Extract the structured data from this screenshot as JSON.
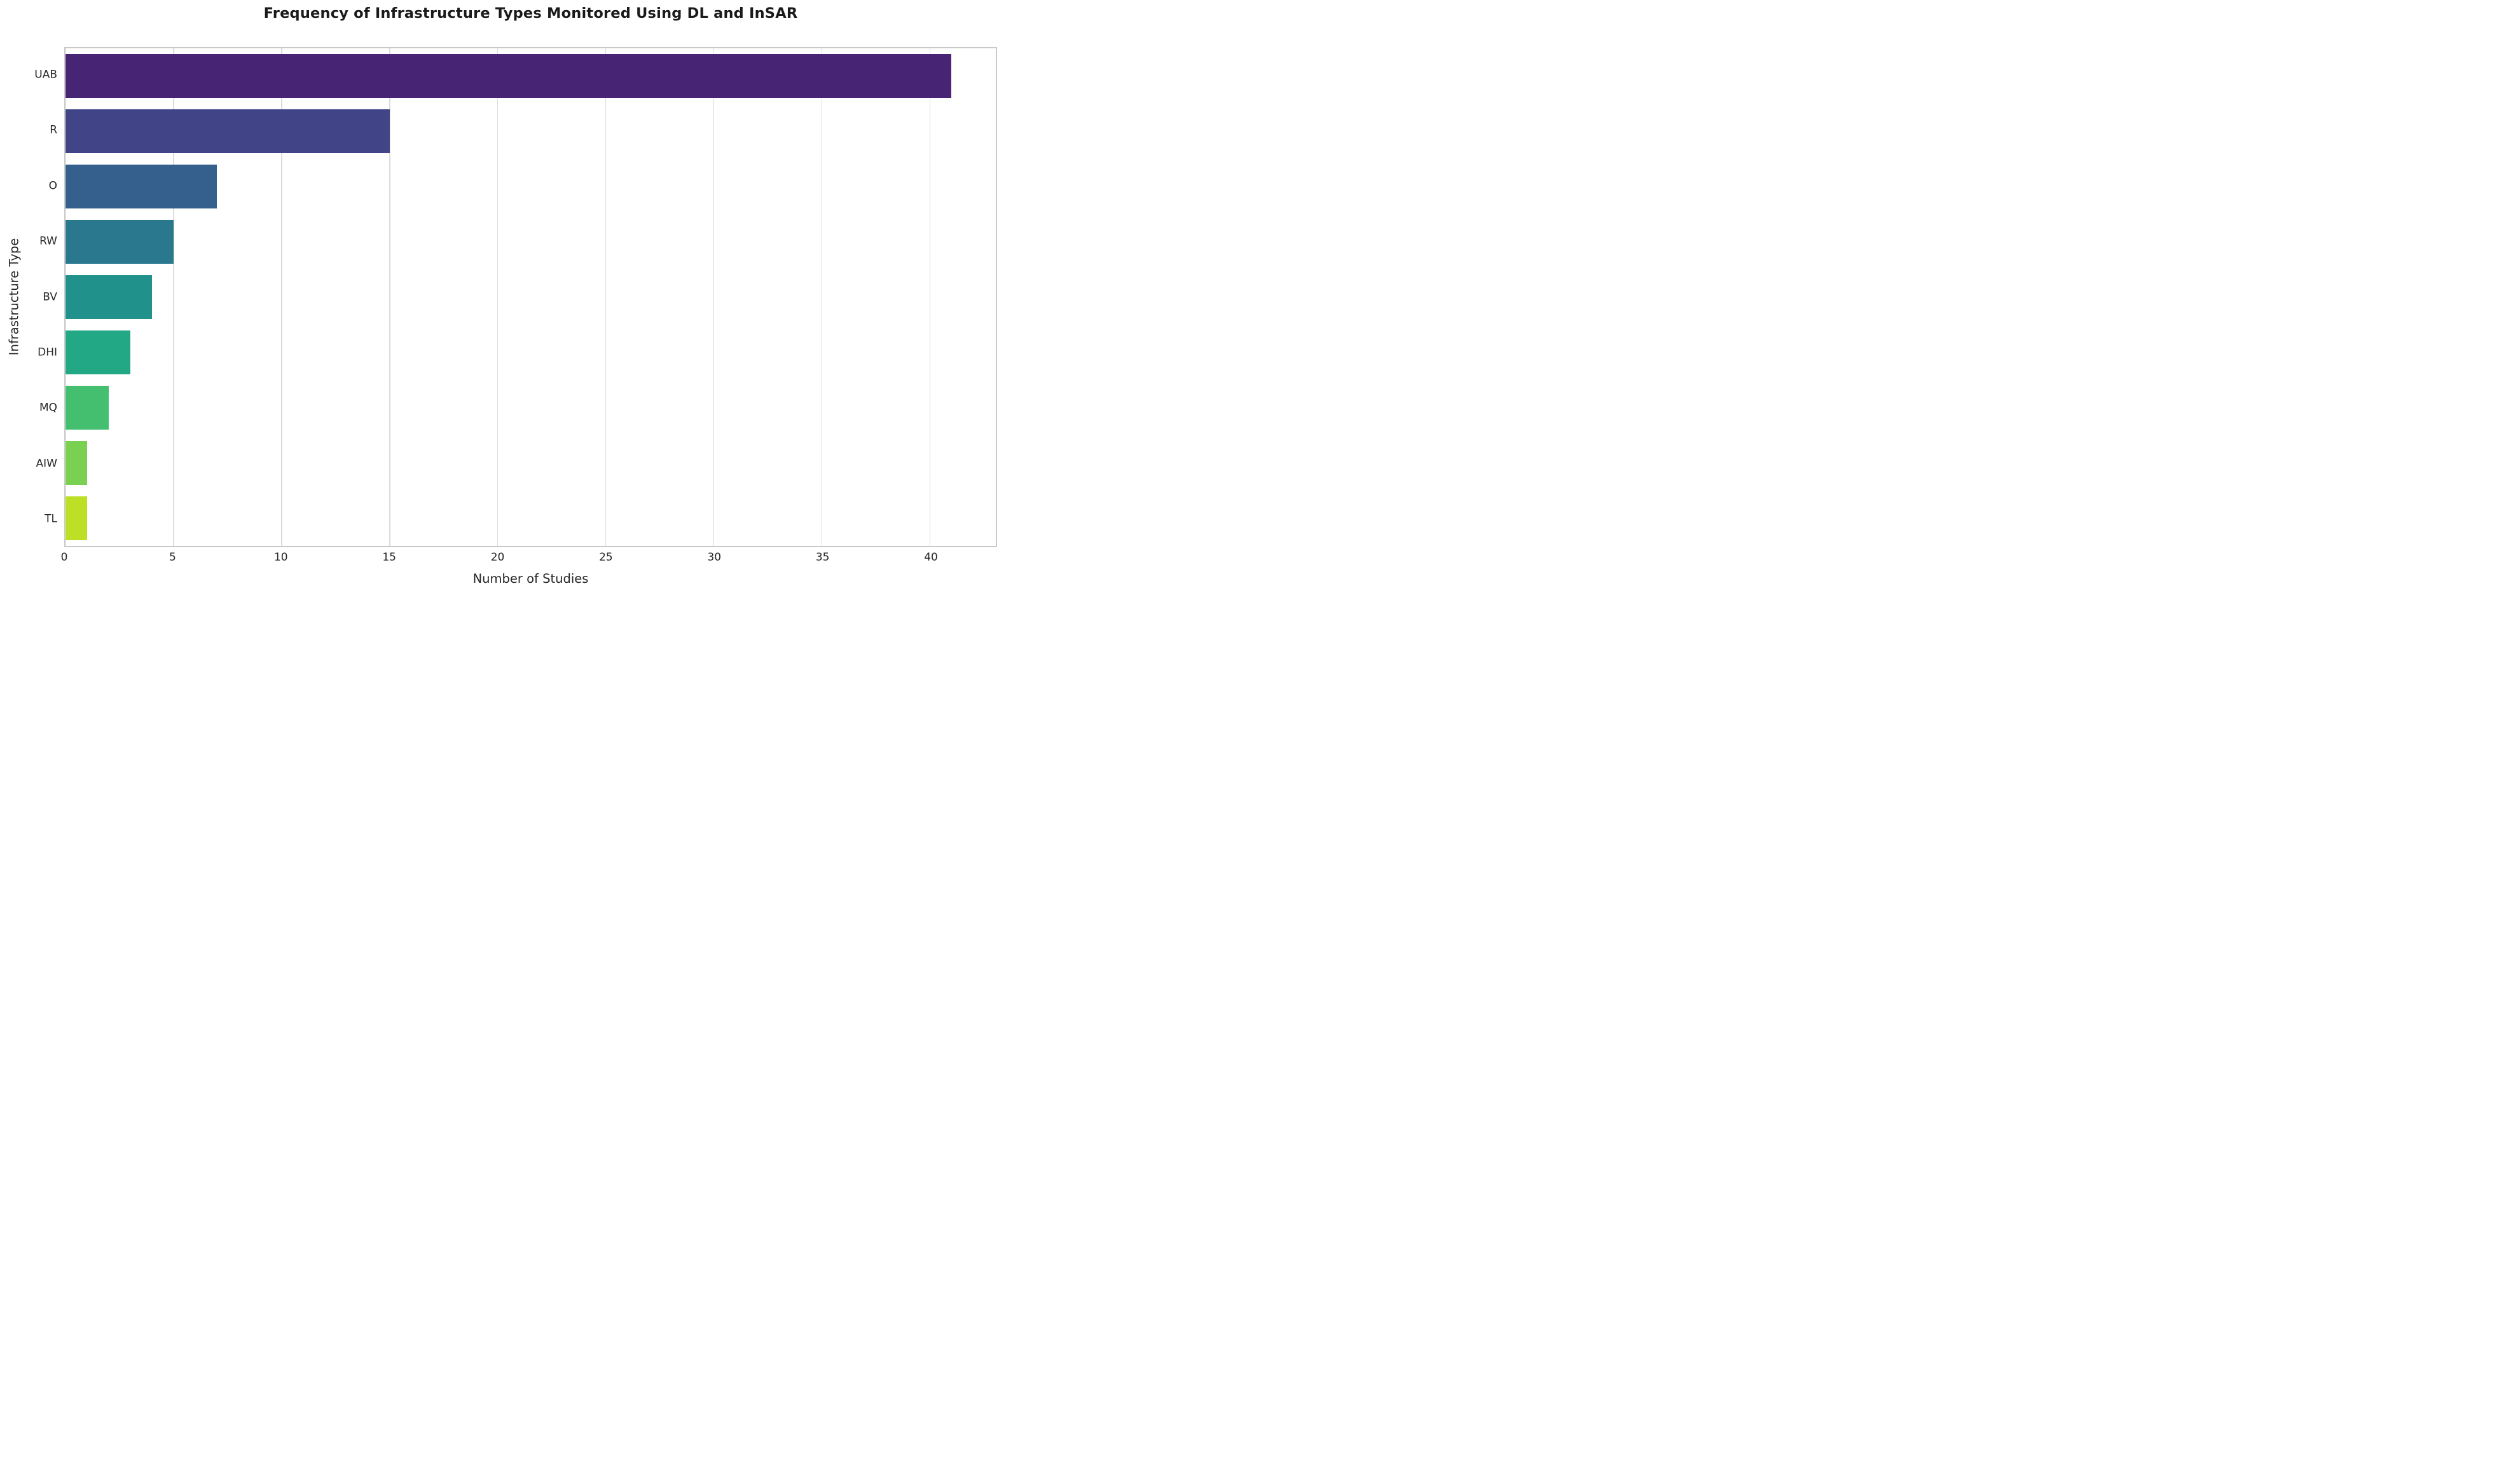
{
  "chart_data": {
    "type": "bar",
    "orientation": "horizontal",
    "title": "Frequency of Infrastructure Types Monitored Using DL and InSAR",
    "xlabel": "Number of Studies",
    "ylabel": "Infrastructure Type",
    "categories": [
      "UAB",
      "R",
      "O",
      "RW",
      "BV",
      "DHI",
      "MQ",
      "AIW",
      "TL"
    ],
    "values": [
      41,
      15,
      7,
      5,
      4,
      3,
      2,
      1,
      1
    ],
    "bar_colors": [
      "#482475",
      "#414487",
      "#355f8d",
      "#2a788e",
      "#21918c",
      "#22a884",
      "#44bf70",
      "#7ad151",
      "#bddf26"
    ],
    "xlim": [
      0,
      43.05
    ],
    "xticks": [
      0,
      5,
      10,
      15,
      20,
      25,
      30,
      35,
      40
    ],
    "grid": "vertical",
    "legend": "none",
    "grid_color": "#dcdcdc",
    "spine_color": "#c9c9c9",
    "text_color": "#262626",
    "background_color": "#ffffff"
  }
}
